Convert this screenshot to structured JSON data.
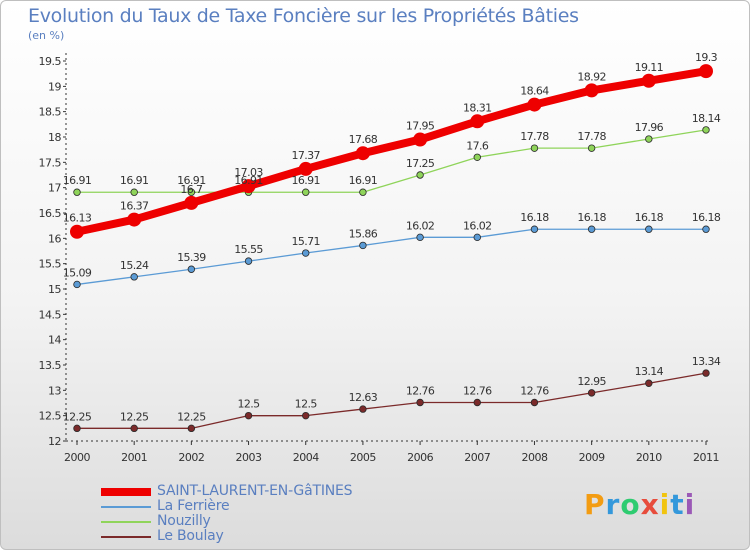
{
  "chart_data": {
    "type": "line",
    "title": "Evolution du Taux de Taxe Foncière sur les Propriétés Bâties",
    "unit_label": "(en %)",
    "x": [
      "2000",
      "2001",
      "2002",
      "2003",
      "2004",
      "2005",
      "2006",
      "2007",
      "2008",
      "2009",
      "2010",
      "2011"
    ],
    "ylim": [
      12,
      19.5
    ],
    "yticks": [
      "12",
      "12.5",
      "13",
      "13.5",
      "14",
      "14.5",
      "15",
      "15.5",
      "16",
      "16.5",
      "17",
      "17.5",
      "18",
      "18.5",
      "19",
      "19.5"
    ],
    "grid": false,
    "legend_position": "bottom-left",
    "series": [
      {
        "name": "SAINT-LAURENT-EN-GâTINES",
        "color": "#ee0000",
        "values": [
          16.13,
          16.37,
          16.7,
          17.03,
          17.37,
          17.68,
          17.95,
          18.31,
          18.64,
          18.92,
          19.11,
          19.3
        ],
        "labels": [
          "16.13",
          "16.37",
          "16.7",
          "17.03",
          "17.37",
          "17.68",
          "17.95",
          "18.31",
          "18.64",
          "18.92",
          "19.11",
          "19.3"
        ]
      },
      {
        "name": "La Ferrière",
        "color": "#5b9bd5",
        "values": [
          15.09,
          15.24,
          15.39,
          15.55,
          15.71,
          15.86,
          16.02,
          16.02,
          16.18,
          16.18,
          16.18,
          16.18
        ],
        "labels": [
          "15.09",
          "15.24",
          "15.39",
          "15.55",
          "15.71",
          "15.86",
          "16.02",
          "16.02",
          "16.18",
          "16.18",
          "16.18",
          "16.18"
        ]
      },
      {
        "name": "Nouzilly",
        "color": "#8fd45a",
        "values": [
          16.91,
          16.91,
          16.91,
          16.91,
          16.91,
          16.91,
          17.25,
          17.6,
          17.78,
          17.78,
          17.96,
          18.14
        ],
        "labels": [
          "16.91",
          "16.91",
          "16.91",
          "16.91",
          "16.91",
          "16.91",
          "17.25",
          "17.6",
          "17.78",
          "17.78",
          "17.96",
          "18.14"
        ]
      },
      {
        "name": "Le Boulay",
        "color": "#7b2a2a",
        "values": [
          12.25,
          12.25,
          12.25,
          12.5,
          12.5,
          12.63,
          12.76,
          12.76,
          12.76,
          12.95,
          13.14,
          13.34
        ],
        "labels": [
          "12.25",
          "12.25",
          "12.25",
          "12.5",
          "12.5",
          "12.63",
          "12.76",
          "12.76",
          "12.76",
          "12.95",
          "13.14",
          "13.34"
        ]
      }
    ]
  },
  "logo": {
    "text": "Proxiti",
    "letters": [
      "P",
      "r",
      "o",
      "x",
      "i",
      "t",
      "i"
    ],
    "colors": [
      "#f39c12",
      "#3498db",
      "#2ecc71",
      "#e74c3c",
      "#f1c40f",
      "#3498db",
      "#9b59b6"
    ]
  }
}
